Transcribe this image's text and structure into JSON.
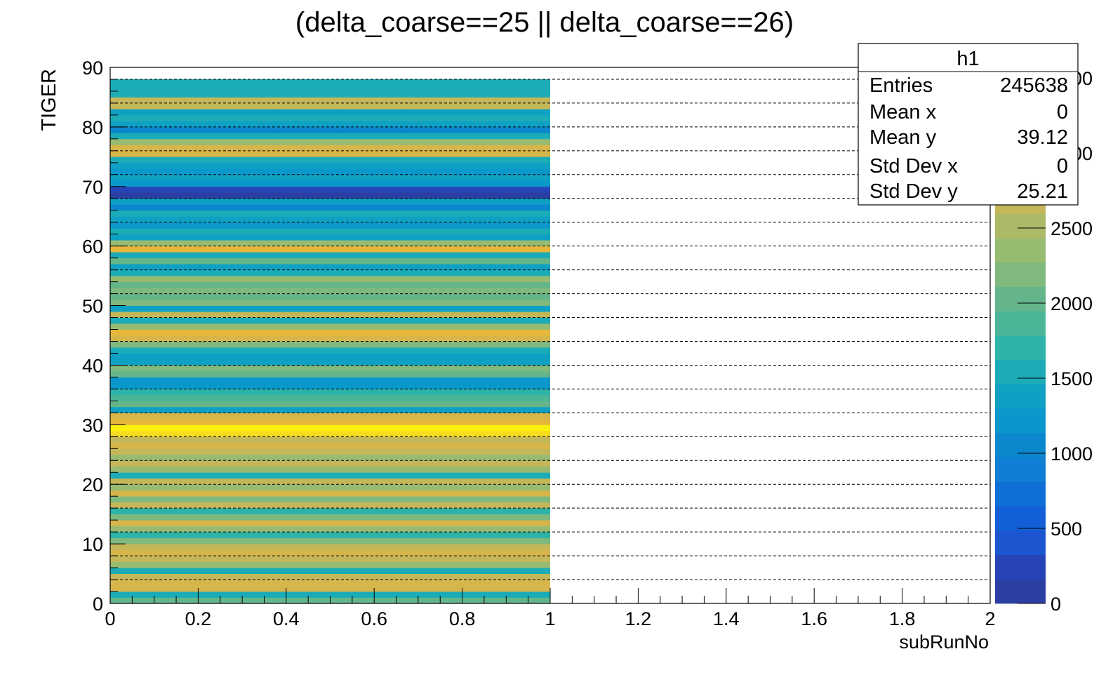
{
  "chart_data": {
    "type": "heatmap",
    "title": "(delta_coarse==25 || delta_coarse==26)",
    "xlabel": "subRunNo",
    "ylabel": "TIGER",
    "xlim": [
      0,
      2
    ],
    "ylim": [
      0,
      90
    ],
    "x_ticks": [
      0,
      0.2,
      0.4,
      0.6,
      0.8,
      1,
      1.2,
      1.4,
      1.6,
      1.8,
      2
    ],
    "y_ticks": [
      0,
      10,
      20,
      30,
      40,
      50,
      60,
      70,
      80,
      90
    ],
    "z_ticks": [
      0,
      500,
      1000,
      1500,
      2000,
      2500,
      3000,
      3500
    ],
    "zlim": [
      0,
      3570
    ],
    "grid_y": true,
    "x_bin": [
      0,
      1
    ],
    "y_bins": [
      0,
      1,
      2,
      3,
      4,
      5,
      6,
      7,
      8,
      9,
      10,
      11,
      12,
      13,
      14,
      15,
      16,
      17,
      18,
      19,
      20,
      21,
      22,
      23,
      24,
      25,
      26,
      27,
      28,
      29,
      30,
      31,
      32,
      33,
      34,
      35,
      36,
      37,
      38,
      39,
      40,
      41,
      42,
      43,
      44,
      45,
      46,
      47,
      48,
      49,
      50,
      51,
      52,
      53,
      54,
      55,
      56,
      57,
      58,
      59,
      60,
      61,
      62,
      63,
      64,
      65,
      66,
      67,
      68,
      69,
      70,
      71,
      72,
      73,
      74,
      75,
      76,
      77,
      78,
      79,
      80,
      81,
      82,
      83,
      84,
      85,
      86,
      87
    ],
    "values": [
      2100,
      1500,
      2900,
      2900,
      2700,
      1600,
      2300,
      2700,
      2900,
      2600,
      2200,
      1700,
      2400,
      2900,
      2200,
      1700,
      2700,
      2200,
      2900,
      2300,
      2600,
      1600,
      2400,
      2600,
      2300,
      2600,
      2800,
      2700,
      3300,
      3500,
      3000,
      2900,
      1300,
      2100,
      1900,
      1700,
      1200,
      1200,
      2100,
      2200,
      1400,
      1400,
      1500,
      2200,
      2900,
      3000,
      2400,
      1500,
      2600,
      1400,
      2200,
      2100,
      2200,
      2100,
      2400,
      1600,
      1400,
      2100,
      1600,
      3000,
      2300,
      1400,
      1500,
      1200,
      1400,
      1500,
      1000,
      1300,
      0,
      200,
      1200,
      1400,
      1200,
      1300,
      1600,
      2900,
      2800,
      2400,
      1500,
      1000,
      1300,
      1500,
      1400,
      2700,
      2600,
      1500,
      1600,
      1600
    ],
    "palette": [
      "#2b3ea2",
      "#2744b6",
      "#1b55d0",
      "#125fd8",
      "#0e6fd6",
      "#0f7ed4",
      "#0b87ce",
      "#0a97cc",
      "#0fa1c4",
      "#1bacb8",
      "#2db3a8",
      "#4cb597",
      "#64b68a",
      "#7fb97e",
      "#98bb72",
      "#acba68",
      "#c4b75a",
      "#d6b64b",
      "#e7b73c",
      "#f1c437",
      "#f7dc20",
      "#f9f10d"
    ],
    "stats": {
      "name": "h1",
      "rows": [
        {
          "label": "Entries",
          "value": "245638"
        },
        {
          "label": "Mean x",
          "value": "0"
        },
        {
          "label": "Mean y",
          "value": "39.12"
        },
        {
          "label": "Std Dev x",
          "value": "0"
        },
        {
          "label": "Std Dev y",
          "value": "25.21"
        }
      ]
    }
  }
}
